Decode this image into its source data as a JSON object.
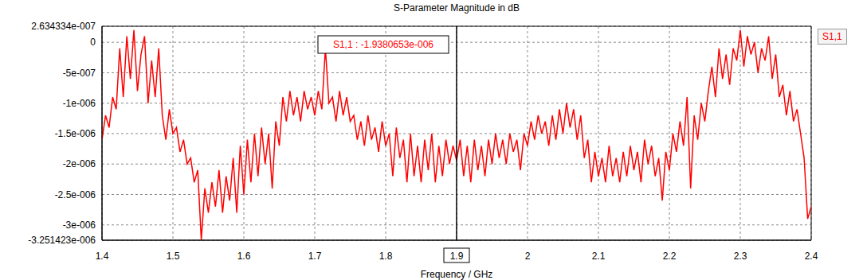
{
  "chart_data": {
    "type": "line",
    "title": "S-Parameter Magnitude in dB",
    "x_label": "Frequency / GHz",
    "x": [
      1.4,
      1.405,
      1.41,
      1.415,
      1.42,
      1.425,
      1.43,
      1.435,
      1.44,
      1.445,
      1.45,
      1.455,
      1.46,
      1.465,
      1.47,
      1.475,
      1.48,
      1.485,
      1.49,
      1.495,
      1.5,
      1.505,
      1.51,
      1.515,
      1.52,
      1.525,
      1.53,
      1.535,
      1.54,
      1.545,
      1.55,
      1.555,
      1.56,
      1.565,
      1.57,
      1.575,
      1.58,
      1.585,
      1.59,
      1.595,
      1.6,
      1.605,
      1.61,
      1.615,
      1.62,
      1.625,
      1.63,
      1.635,
      1.64,
      1.645,
      1.65,
      1.655,
      1.66,
      1.665,
      1.67,
      1.675,
      1.68,
      1.685,
      1.69,
      1.695,
      1.7,
      1.705,
      1.71,
      1.715,
      1.72,
      1.725,
      1.73,
      1.735,
      1.74,
      1.745,
      1.75,
      1.755,
      1.76,
      1.765,
      1.77,
      1.775,
      1.78,
      1.785,
      1.79,
      1.795,
      1.8,
      1.805,
      1.81,
      1.815,
      1.82,
      1.825,
      1.83,
      1.835,
      1.84,
      1.845,
      1.85,
      1.855,
      1.86,
      1.865,
      1.87,
      1.875,
      1.88,
      1.885,
      1.89,
      1.895,
      1.9,
      1.905,
      1.91,
      1.915,
      1.92,
      1.925,
      1.93,
      1.935,
      1.94,
      1.945,
      1.95,
      1.955,
      1.96,
      1.965,
      1.97,
      1.975,
      1.98,
      1.985,
      1.99,
      1.995,
      2.0,
      2.005,
      2.01,
      2.015,
      2.02,
      2.025,
      2.03,
      2.035,
      2.04,
      2.045,
      2.05,
      2.055,
      2.06,
      2.065,
      2.07,
      2.075,
      2.08,
      2.085,
      2.09,
      2.095,
      2.1,
      2.105,
      2.11,
      2.115,
      2.12,
      2.125,
      2.13,
      2.135,
      2.14,
      2.145,
      2.15,
      2.155,
      2.16,
      2.165,
      2.17,
      2.175,
      2.18,
      2.185,
      2.19,
      2.195,
      2.2,
      2.205,
      2.21,
      2.215,
      2.22,
      2.225,
      2.23,
      2.235,
      2.24,
      2.245,
      2.25,
      2.255,
      2.26,
      2.265,
      2.27,
      2.275,
      2.28,
      2.285,
      2.29,
      2.295,
      2.3,
      2.305,
      2.31,
      2.315,
      2.32,
      2.325,
      2.33,
      2.335,
      2.34,
      2.345,
      2.35,
      2.355,
      2.36,
      2.365,
      2.37,
      2.375,
      2.38,
      2.385,
      2.39,
      2.395,
      2.4
    ],
    "series": [
      {
        "name": "S1,1",
        "color": "#ff0000",
        "values": [
          -1.6e-06,
          -1.2e-06,
          -1.4e-06,
          -9e-07,
          -1.1e-06,
          -1e-07,
          -9e-07,
          1e-07,
          -6e-07,
          2e-07,
          -8e-07,
          -2e-07,
          1e-07,
          -1e-06,
          -3e-07,
          -9e-07,
          -1e-07,
          -1.2e-06,
          -1.6e-06,
          -1.1e-06,
          -1.5e-06,
          -1.4e-06,
          -1.8e-06,
          -1.6e-06,
          -2e-06,
          -1.9e-06,
          -2.3e-06,
          -2.1e-06,
          -3.25e-06,
          -2.4e-06,
          -2.8e-06,
          -2.3e-06,
          -2.7e-06,
          -2.1e-06,
          -2.8e-06,
          -2.2e-06,
          -2.6e-06,
          -1.9e-06,
          -2.8e-06,
          -1.7e-06,
          -2.5e-06,
          -1.6e-06,
          -2.3e-06,
          -1.5e-06,
          -2.2e-06,
          -1.4e-06,
          -2e-06,
          -1.5e-06,
          -2.4e-06,
          -1.3e-06,
          -1.7e-06,
          -9e-07,
          -1.3e-06,
          -8e-07,
          -1.2e-06,
          -9e-07,
          -1.3e-06,
          -8e-07,
          -1.1e-06,
          -9e-07,
          -1.2e-06,
          -8e-07,
          -1.1e-06,
          -1e-07,
          -1e-06,
          -9e-07,
          -1.3e-06,
          -8e-07,
          -1.2e-06,
          -9e-07,
          -1.3e-06,
          -1.2e-06,
          -1.6e-06,
          -1.3e-06,
          -1.7e-06,
          -1.2e-06,
          -1.6e-06,
          -1.4e-06,
          -1.8e-06,
          -1.3e-06,
          -1.7e-06,
          -1.5e-06,
          -2.2e-06,
          -1.4e-06,
          -1.9e-06,
          -1.6e-06,
          -2.3e-06,
          -1.5e-06,
          -2.2e-06,
          -1.7e-06,
          -2.3e-06,
          -1.6e-06,
          -2.1e-06,
          -1.5e-06,
          -2.3e-06,
          -1.7e-06,
          -2.2e-06,
          -1.6e-06,
          -2e-06,
          -1.7e-06,
          -1.94e-06,
          -1.6e-06,
          -2.2e-06,
          -1.7e-06,
          -2.3e-06,
          -1.6e-06,
          -2.1e-06,
          -1.7e-06,
          -2.2e-06,
          -1.6e-06,
          -2e-06,
          -1.5e-06,
          -1.9e-06,
          -1.6e-06,
          -2e-06,
          -1.5e-06,
          -1.8e-06,
          -1.6e-06,
          -2.1e-06,
          -1.5e-06,
          -1.7e-06,
          -1.3e-06,
          -1.6e-06,
          -1.2e-06,
          -1.5e-06,
          -1.3e-06,
          -1.7e-06,
          -1.2e-06,
          -1.6e-06,
          -1.1e-06,
          -1.5e-06,
          -1e-06,
          -1.4e-06,
          -1.1e-06,
          -1.6e-06,
          -1.2e-06,
          -1.9e-06,
          -1.6e-06,
          -2.3e-06,
          -1.8e-06,
          -2.2e-06,
          -1.9e-06,
          -2.3e-06,
          -1.7e-06,
          -2.2e-06,
          -1.9e-06,
          -2.3e-06,
          -1.8e-06,
          -2.2e-06,
          -1.7e-06,
          -2.1e-06,
          -1.8e-06,
          -2.3e-06,
          -1.6e-06,
          -2e-06,
          -1.7e-06,
          -2.2e-06,
          -1.9e-06,
          -2.6e-06,
          -1.8e-06,
          -2.1e-06,
          -1.5e-06,
          -1.8e-06,
          -1.3e-06,
          -1.7e-06,
          -9e-07,
          -2.4e-06,
          -1.2e-06,
          -1.6e-06,
          -1e-06,
          -1.3e-06,
          -8e-07,
          -4e-07,
          -9e-07,
          -1e-07,
          -6e-07,
          -2e-07,
          -7e-07,
          -1e-07,
          -3e-07,
          2e-07,
          -4e-07,
          1e-07,
          -2e-07,
          0,
          -5e-07,
          -1e-07,
          -3e-07,
          1e-07,
          -6e-07,
          -2e-07,
          -9e-07,
          -7e-07,
          -1.2e-06,
          -8e-07,
          -1.3e-06,
          -1.1e-06,
          -1.5e-06,
          -1.9e-06,
          -2.9e-06,
          -2.7e-06
        ]
      }
    ],
    "xlim": [
      1.4,
      2.4
    ],
    "xticks": [
      1.4,
      1.5,
      1.6,
      1.7,
      1.8,
      1.9,
      2,
      2.1,
      2.2,
      2.3,
      2.4
    ],
    "ylim": [
      -3.251423e-06,
      2.634334e-07
    ],
    "yticks": [
      {
        "value": 2.634334e-07,
        "label": "2.634334e-007"
      },
      0,
      {
        "value": -5e-07,
        "label": "-5e-007"
      },
      {
        "value": -1e-06,
        "label": "-1e-006"
      },
      {
        "value": -1.5e-06,
        "label": "-1.5e-006"
      },
      {
        "value": -2e-06,
        "label": "-2e-006"
      },
      {
        "value": -2.5e-06,
        "label": "-2.5e-006"
      },
      {
        "value": -3e-06,
        "label": "-3e-006"
      },
      {
        "value": -3.251423e-06,
        "label": "-3.251423e-006"
      }
    ],
    "annotations": [
      {
        "x": 1.9,
        "text": "S1,1 : -1.9380653e-006"
      }
    ],
    "grid": true,
    "legend": "upper right"
  }
}
